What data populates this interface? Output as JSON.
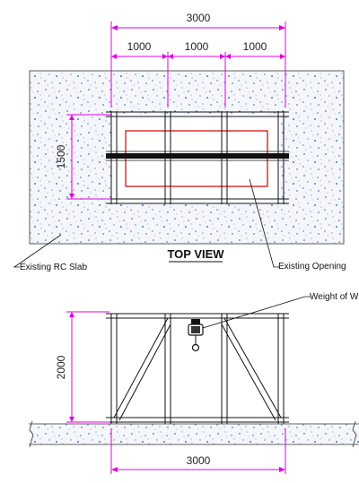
{
  "top_view": {
    "overall_width": "3000",
    "bay_1": "1000",
    "bay_2": "1000",
    "bay_3": "1000",
    "depth": "1500",
    "title": "TOP VIEW",
    "slab_label": "Existing RC Slab",
    "opening_label": "Existing Opening"
  },
  "elevation": {
    "height": "2000",
    "width": "3000",
    "weight_label": "Weight of W"
  },
  "colors": {
    "dimension": "#e000e0",
    "opening": "#d00000",
    "concrete_dot": "#4a78c8",
    "line": "#111111"
  }
}
